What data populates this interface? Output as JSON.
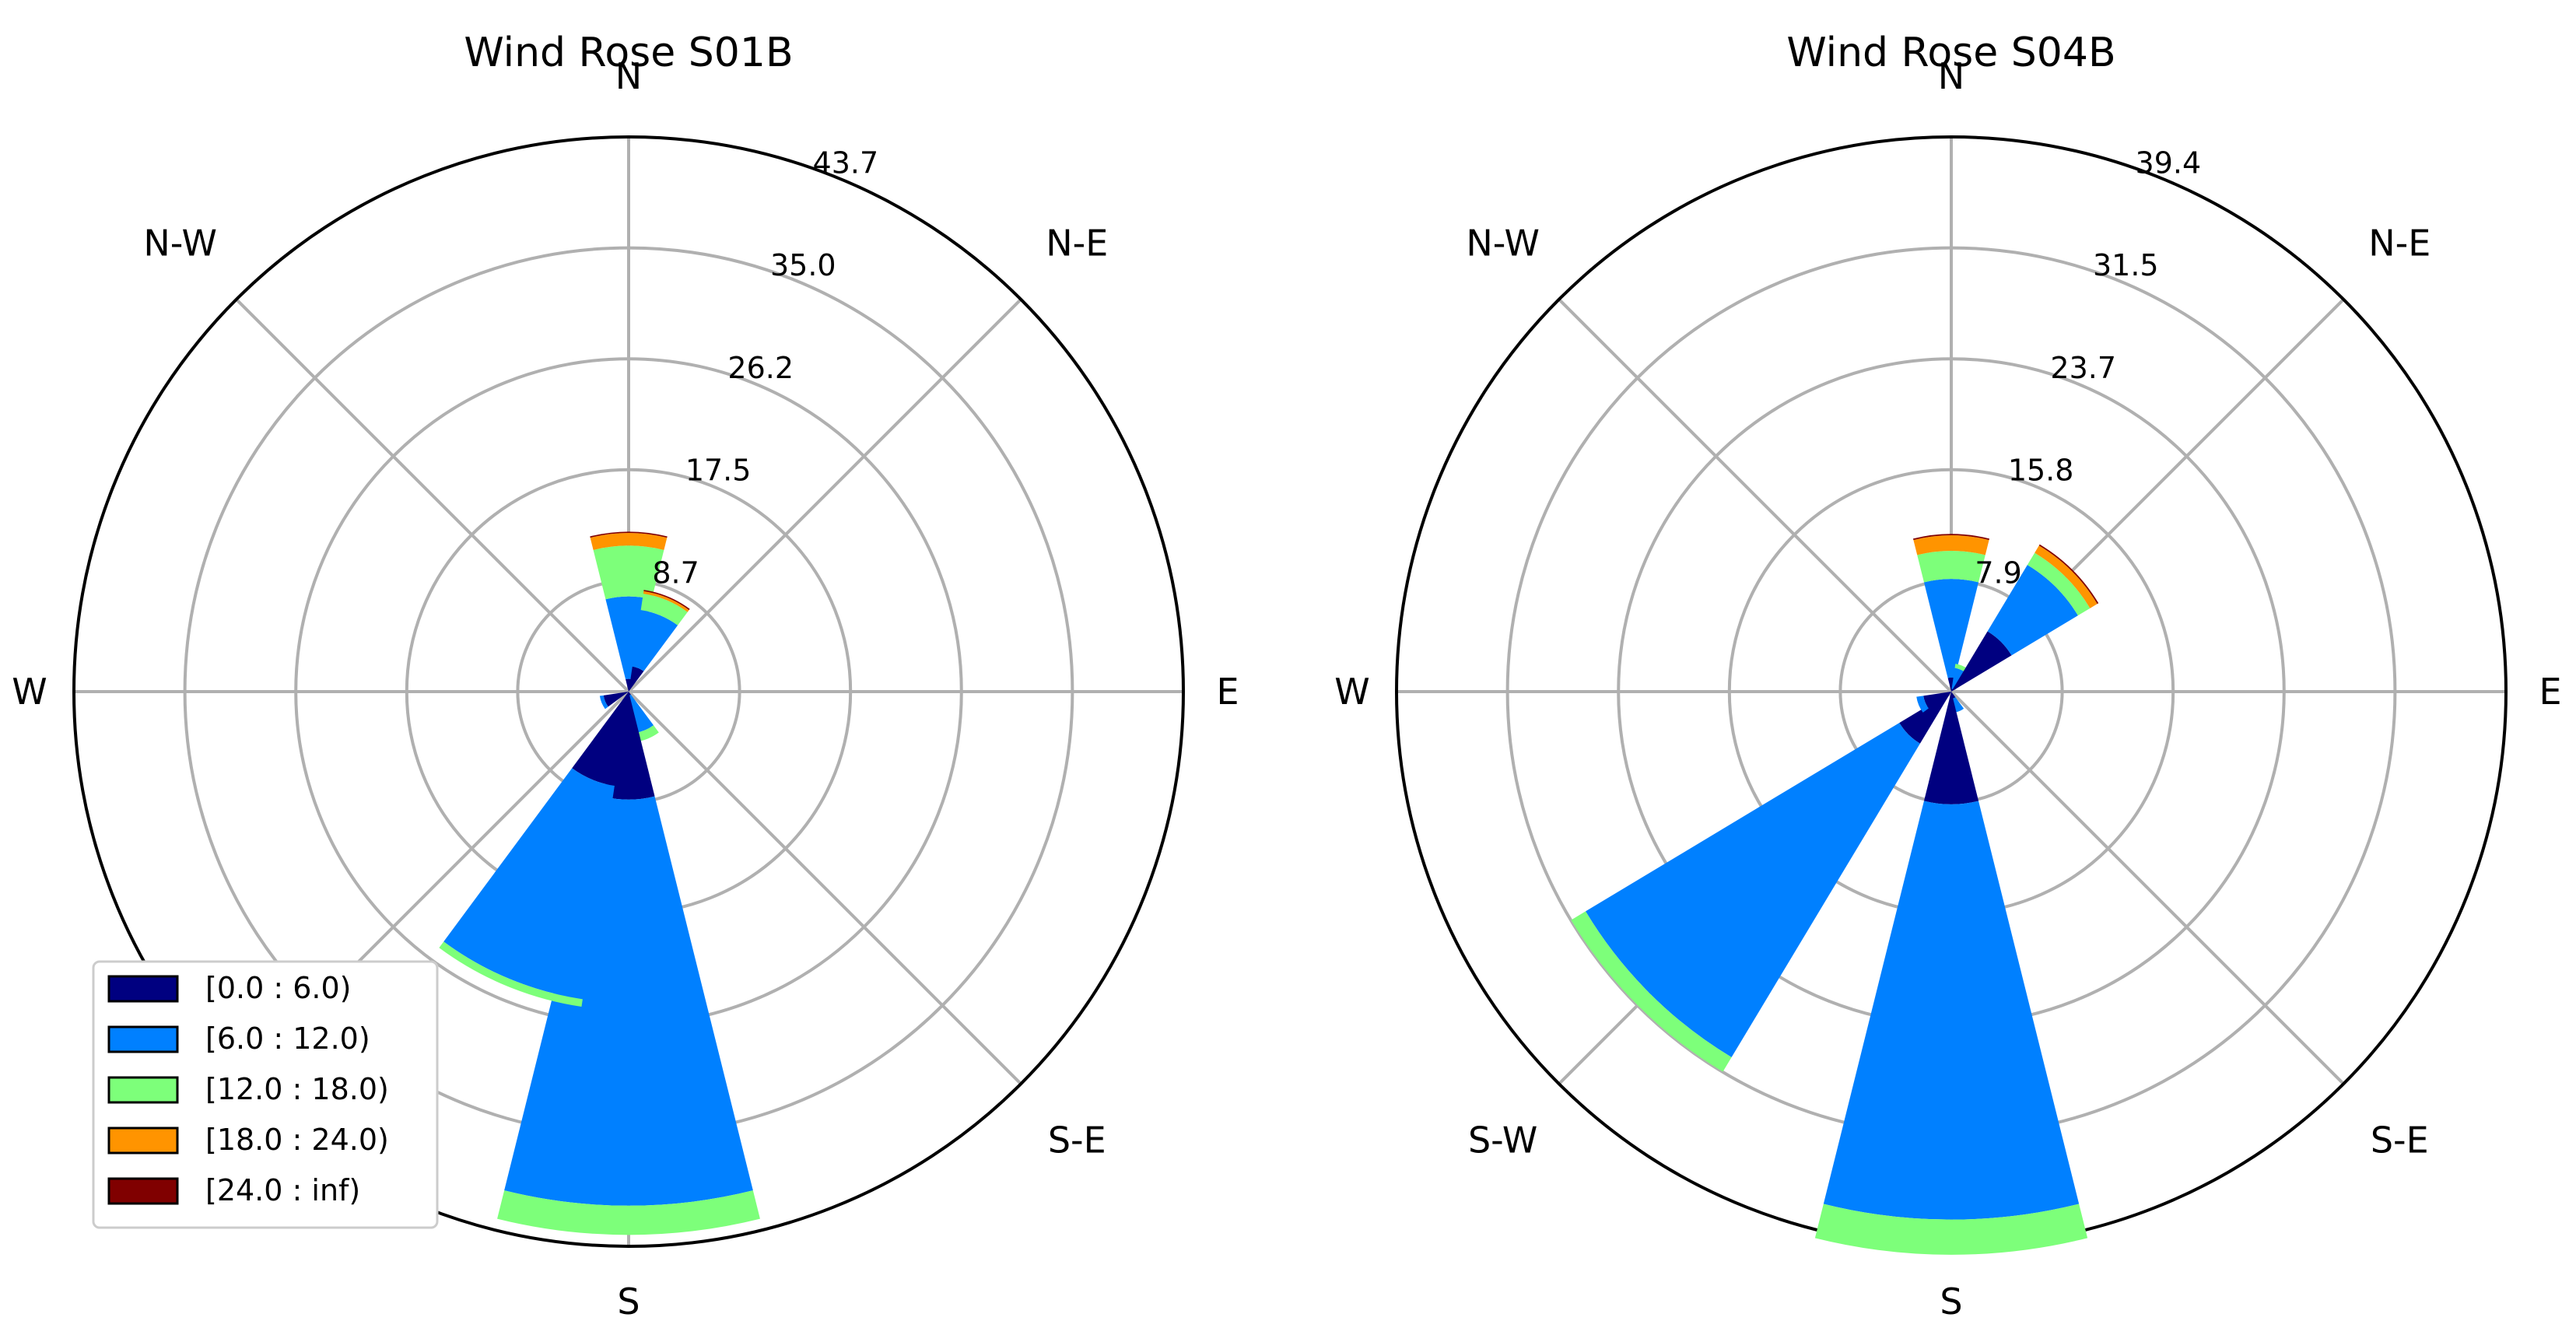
{
  "chart_data": [
    {
      "type": "windrose",
      "title": "Wind Rose S01B",
      "directions": [
        "N",
        "N-E",
        "E",
        "S-E",
        "S",
        "S-W",
        "W",
        "N-W"
      ],
      "radial_ticks": [
        "8.7",
        "17.5",
        "26.2",
        "35.0",
        "43.7"
      ],
      "rmax": 43.7,
      "bins": [
        "[0.0 : 6.0)",
        "[6.0 : 12.0)",
        "[12.0 : 18.0)",
        "[18.0 : 24.0)",
        "[24.0 : inf)"
      ],
      "sectors": [
        {
          "angle": 0,
          "values": [
            1.0,
            6.5,
            4.0,
            1.0,
            0.1
          ]
        },
        {
          "angle": 22.5,
          "values": [
            2.0,
            4.5,
            1.3,
            0.2,
            0.1
          ]
        },
        {
          "angle": 157.5,
          "values": [
            0.3,
            3.0,
            0.7,
            0.0,
            0.0
          ]
        },
        {
          "angle": 180,
          "values": [
            8.5,
            32.0,
            2.3,
            0.0,
            0.0
          ]
        },
        {
          "angle": 202.5,
          "values": [
            7.5,
            17.0,
            0.6,
            0.0,
            0.0
          ]
        },
        {
          "angle": 247.5,
          "values": [
            2.0,
            0.3,
            0.0,
            0.0,
            0.0
          ]
        }
      ],
      "grid": true,
      "legend_position": "lower-left"
    },
    {
      "type": "windrose",
      "title": "Wind Rose S04B",
      "directions": [
        "N",
        "N-E",
        "E",
        "S-E",
        "S",
        "S-W",
        "W",
        "N-W"
      ],
      "radial_ticks": [
        "7.9",
        "15.8",
        "23.7",
        "31.5",
        "39.4"
      ],
      "rmax": 39.4,
      "sectors": [
        {
          "angle": 0,
          "values": [
            1.0,
            7.0,
            2.0,
            1.1,
            0.1
          ]
        },
        {
          "angle": 22.5,
          "values": [
            0.2,
            1.5,
            0.3,
            0.0,
            0.0
          ]
        },
        {
          "angle": 45,
          "values": [
            5.0,
            5.5,
            1.0,
            0.6,
            0.1
          ]
        },
        {
          "angle": 157.5,
          "values": [
            0.5,
            1.0,
            0.0,
            0.0,
            0.0
          ]
        },
        {
          "angle": 180,
          "values": [
            8.0,
            29.5,
            2.5,
            0.0,
            0.0
          ]
        },
        {
          "angle": 225,
          "values": [
            4.3,
            26.0,
            1.2,
            0.0,
            0.0
          ]
        },
        {
          "angle": 247.5,
          "values": [
            2.0,
            0.5,
            0.0,
            0.0,
            0.0
          ]
        }
      ],
      "grid": true
    }
  ],
  "colors": {
    "bins": [
      "#000080",
      "#0080ff",
      "#7dff7a",
      "#ff9400",
      "#800000"
    ],
    "grid": "#b0b0b0"
  }
}
